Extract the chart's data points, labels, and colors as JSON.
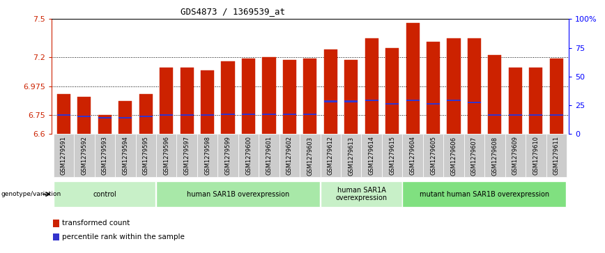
{
  "title": "GDS4873 / 1369539_at",
  "samples": [
    "GSM1279591",
    "GSM1279592",
    "GSM1279593",
    "GSM1279594",
    "GSM1279595",
    "GSM1279596",
    "GSM1279597",
    "GSM1279598",
    "GSM1279599",
    "GSM1279600",
    "GSM1279601",
    "GSM1279602",
    "GSM1279603",
    "GSM1279612",
    "GSM1279613",
    "GSM1279614",
    "GSM1279615",
    "GSM1279604",
    "GSM1279605",
    "GSM1279606",
    "GSM1279607",
    "GSM1279608",
    "GSM1279609",
    "GSM1279610",
    "GSM1279611"
  ],
  "transformed_counts": [
    6.91,
    6.89,
    6.75,
    6.86,
    6.91,
    7.12,
    7.12,
    7.1,
    7.17,
    7.19,
    7.2,
    7.18,
    7.19,
    7.26,
    7.18,
    7.35,
    7.27,
    7.47,
    7.32,
    7.35,
    7.35,
    7.22,
    7.12,
    7.12,
    7.19
  ],
  "percentile_ranks": [
    6.748,
    6.74,
    6.728,
    6.728,
    6.74,
    6.75,
    6.75,
    6.75,
    6.755,
    6.755,
    6.755,
    6.755,
    6.755,
    6.855,
    6.855,
    6.865,
    6.838,
    6.865,
    6.838,
    6.865,
    6.848,
    6.75,
    6.75,
    6.75,
    6.75
  ],
  "bar_color": "#cc2200",
  "percentile_color": "#3333cc",
  "ymin": 6.6,
  "ymax": 7.5,
  "yticks": [
    6.6,
    6.75,
    6.975,
    7.2,
    7.5
  ],
  "ytick_labels": [
    "6.6",
    "6.75",
    "6.975",
    "7.2",
    "7.5"
  ],
  "right_yticks_pct": [
    0,
    25,
    50,
    75,
    100
  ],
  "right_ytick_labels": [
    "0",
    "25",
    "50",
    "75",
    "100%"
  ],
  "groups": [
    {
      "label": "control",
      "start": 0,
      "end": 5,
      "color": "#c8f0c8"
    },
    {
      "label": "human SAR1B overexpression",
      "start": 5,
      "end": 13,
      "color": "#a8e8a8"
    },
    {
      "label": "human SAR1A\noverexpression",
      "start": 13,
      "end": 17,
      "color": "#c8f0c8"
    },
    {
      "label": "mutant human SAR1B overexpression",
      "start": 17,
      "end": 25,
      "color": "#80e080"
    }
  ],
  "genotype_label": "genotype/variation",
  "legend_items": [
    {
      "label": "transformed count",
      "color": "#cc2200"
    },
    {
      "label": "percentile rank within the sample",
      "color": "#3333cc"
    }
  ],
  "grid_lines": [
    6.75,
    6.975,
    7.2
  ],
  "bar_width": 0.65,
  "tick_bg_color": "#cccccc"
}
